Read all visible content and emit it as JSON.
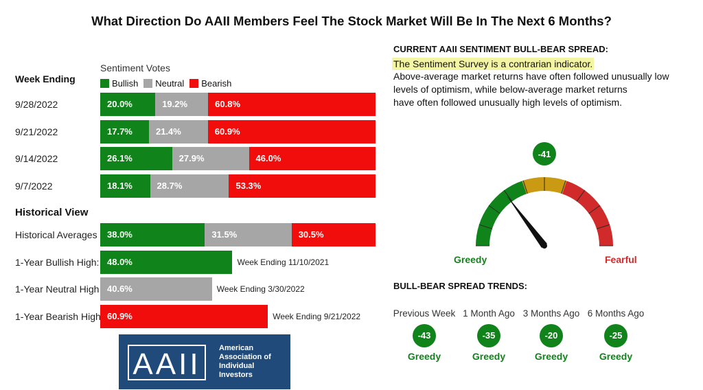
{
  "title": "What Direction Do AAII Members Feel The Stock Market Will Be In The Next 6 Months?",
  "colors": {
    "bullish": "#10831a",
    "neutral": "#a6a6a6",
    "bearish": "#f20d0d",
    "brand": "#1f4a7a"
  },
  "left": {
    "sentiment_votes_label": "Sentiment Votes",
    "week_ending_label": "Week Ending",
    "historical_view_label": "Historical View"
  },
  "logo": {
    "mark": "AAII",
    "line1": "American",
    "line2": "Association of",
    "line3": "Individual",
    "line4": "Investors"
  },
  "right": {
    "spread_heading": "CURRENT AAII SENTIMENT BULL-BEAR SPREAD:",
    "highlight": "The Sentiment Survey is a contrarian indicator.",
    "desc_line1": "Above-average market returns have often followed unusually low",
    "desc_line2": "levels of optimism, while below-average market returns",
    "desc_line3": "have often followed unusually high levels of optimism.",
    "gauge_value": "-41",
    "gauge_left_label": "Greedy",
    "gauge_right_label": "Fearful",
    "trends_heading": "BULL-BEAR SPREAD TRENDS:",
    "trends": [
      {
        "label": "Previous Week",
        "value": "-43",
        "word": "Greedy"
      },
      {
        "label": "1 Month Ago",
        "value": "-35",
        "word": "Greedy"
      },
      {
        "label": "3 Months Ago",
        "value": "-20",
        "word": "Greedy"
      },
      {
        "label": "6 Months Ago",
        "value": "-25",
        "word": "Greedy"
      }
    ]
  },
  "chart_data": [
    {
      "type": "bar",
      "stacked": true,
      "orientation": "horizontal",
      "title": "Sentiment Votes",
      "legend": [
        "Bullish",
        "Neutral",
        "Bearish"
      ],
      "categories": [
        "9/28/2022",
        "9/21/2022",
        "9/14/2022",
        "9/7/2022"
      ],
      "series": [
        {
          "name": "Bullish",
          "values": [
            20.0,
            17.7,
            26.1,
            18.1
          ],
          "labels": [
            "20.0%",
            "17.7%",
            "26.1%",
            "18.1%"
          ]
        },
        {
          "name": "Neutral",
          "values": [
            19.2,
            21.4,
            27.9,
            28.7
          ],
          "labels": [
            "19.2%",
            "21.4%",
            "27.9%",
            "28.7%"
          ]
        },
        {
          "name": "Bearish",
          "values": [
            60.8,
            60.9,
            46.0,
            53.3
          ],
          "labels": [
            "60.8%",
            "60.9%",
            "46.0%",
            "53.3%"
          ]
        }
      ],
      "xlim": [
        0,
        100
      ]
    },
    {
      "type": "bar",
      "stacked": true,
      "orientation": "horizontal",
      "title": "Historical View",
      "categories": [
        "Historical Averages"
      ],
      "series": [
        {
          "name": "Bullish",
          "values": [
            38.0
          ],
          "labels": [
            "38.0%"
          ]
        },
        {
          "name": "Neutral",
          "values": [
            31.5
          ],
          "labels": [
            "31.5%"
          ]
        },
        {
          "name": "Bearish",
          "values": [
            30.5
          ],
          "labels": [
            "30.5%"
          ]
        }
      ],
      "xlim": [
        0,
        100
      ]
    },
    {
      "type": "bar",
      "orientation": "horizontal",
      "categories": [
        "1-Year Bullish High:",
        "1-Year Neutral High",
        "1-Year Bearish High"
      ],
      "values": [
        48.0,
        40.6,
        60.9
      ],
      "labels": [
        "48.0%",
        "40.6%",
        "60.9%"
      ],
      "series_type": [
        "Bullish",
        "Neutral",
        "Bearish"
      ],
      "annotations": [
        "Week Ending 11/10/2021",
        "Week Ending 3/30/2022",
        "Week Ending 9/21/2022"
      ],
      "xlim": [
        0,
        100
      ]
    },
    {
      "type": "gauge",
      "value": -41,
      "range": [
        -100,
        100
      ],
      "left_label": "Greedy",
      "right_label": "Fearful",
      "bands": [
        "green",
        "gold",
        "red"
      ]
    }
  ]
}
